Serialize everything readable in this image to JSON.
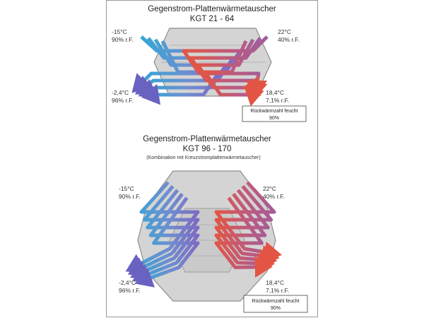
{
  "top": {
    "title": "Gegenstrom-Plattenwärmetauscher",
    "model": "KGT 21 - 64",
    "tl": {
      "temp": "-15°C",
      "rh": "90% r.F."
    },
    "tr": {
      "temp": "22°C",
      "rh": "40% r.F."
    },
    "bl": {
      "temp": "-2,4°C",
      "rh": "96% r.F."
    },
    "br": {
      "temp": "18,4°C",
      "rh": "7,1% r.F."
    },
    "box": {
      "line1": "Rückwärmzahl feucht",
      "line2": "90%"
    }
  },
  "bottom": {
    "title": "Gegenstrom-Plattenwärmetauscher",
    "model": "KGT 96 - 170",
    "note": "(Kombination mit Kreuzstromplattenwärmetauscher)",
    "tl": {
      "temp": "-15°C",
      "rh": "90% r.F."
    },
    "tr": {
      "temp": "22°C",
      "rh": "40% r.F."
    },
    "bl": {
      "temp": "-2,4°C",
      "rh": "96% r.F."
    },
    "br": {
      "temp": "18,4°C",
      "rh": "7,1% r.F."
    },
    "box": {
      "line1": "Rückwärmzahl feucht",
      "line2": "90%"
    }
  },
  "colors": {
    "cold": "#2fa8d6",
    "cold_mid": "#6f8ed0",
    "cool": "#7b6bc4",
    "warm": "#e25544",
    "warm_mid": "#a25c9a",
    "exchanger_fill": "#d4d4d4",
    "exchanger_stroke": "#8c8c8c"
  }
}
